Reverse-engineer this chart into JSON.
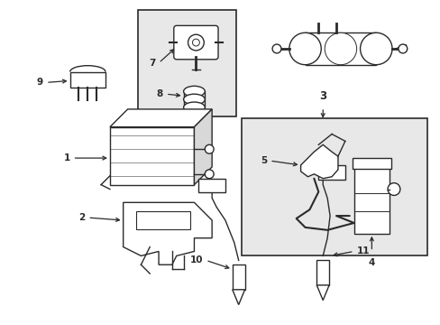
{
  "background_color": "#ffffff",
  "line_color": "#2a2a2a",
  "box_bg": "#e8e8e8",
  "label_fontsize": 7.5,
  "figsize": [
    4.89,
    3.6
  ],
  "dpi": 100
}
